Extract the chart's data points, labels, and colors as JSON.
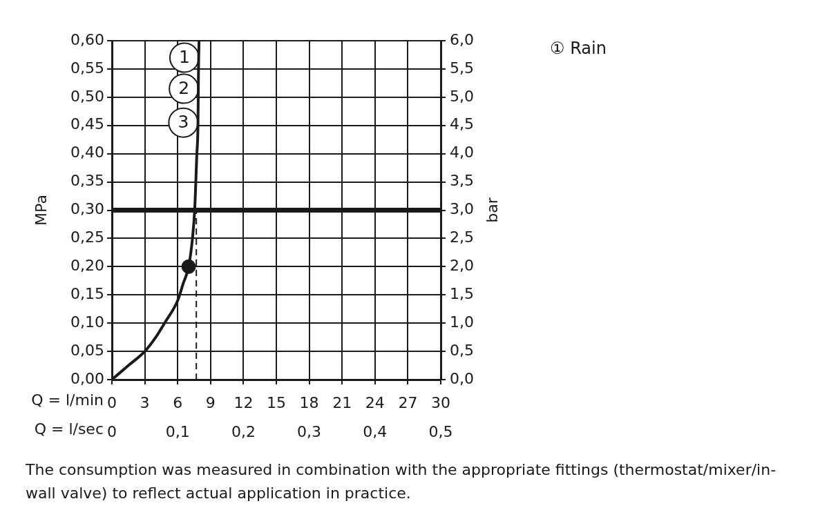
{
  "chart_data": {
    "type": "line",
    "xlabel": "Q = l/min",
    "x2label": "Q = l/sec",
    "ylabel": "MPa",
    "y2label": "bar",
    "xlim": [
      0,
      30
    ],
    "xticks": [
      0,
      3,
      6,
      9,
      12,
      15,
      18,
      21,
      24,
      27,
      30
    ],
    "x2lim": [
      0,
      0.5
    ],
    "x2ticks": [
      0,
      {
        "value": 0.1,
        "label": "0,1"
      },
      {
        "value": 0.2,
        "label": "0,2"
      },
      {
        "value": 0.3,
        "label": "0,3"
      },
      {
        "value": 0.4,
        "label": "0,4"
      },
      {
        "value": 0.5,
        "label": "0,5"
      }
    ],
    "ylim": [
      0,
      0.6
    ],
    "yticks": [
      {
        "value": 0,
        "label": "0,00"
      },
      {
        "value": 0.05,
        "label": "0,05"
      },
      {
        "value": 0.1,
        "label": "0,10"
      },
      {
        "value": 0.15,
        "label": "0,15"
      },
      {
        "value": 0.2,
        "label": "0,20"
      },
      {
        "value": 0.25,
        "label": "0,25"
      },
      {
        "value": 0.3,
        "label": "0,30"
      },
      {
        "value": 0.35,
        "label": "0,35"
      },
      {
        "value": 0.4,
        "label": "0,40"
      },
      {
        "value": 0.45,
        "label": "0,45"
      },
      {
        "value": 0.5,
        "label": "0,50"
      },
      {
        "value": 0.55,
        "label": "0,55"
      },
      {
        "value": 0.6,
        "label": "0,60"
      }
    ],
    "y2lim": [
      0,
      6
    ],
    "y2ticks": [
      {
        "value": 0,
        "label": "0,0"
      },
      {
        "value": 0.5,
        "label": "0,5"
      },
      {
        "value": 1,
        "label": "1,0"
      },
      {
        "value": 1.5,
        "label": "1,5"
      },
      {
        "value": 2,
        "label": "2,0"
      },
      {
        "value": 2.5,
        "label": "2,5"
      },
      {
        "value": 3,
        "label": "3,0"
      },
      {
        "value": 3.5,
        "label": "3,5"
      },
      {
        "value": 4,
        "label": "4,0"
      },
      {
        "value": 4.5,
        "label": "4,5"
      },
      {
        "value": 5,
        "label": "5,0"
      },
      {
        "value": 5.5,
        "label": "5,5"
      },
      {
        "value": 6,
        "label": "6,0"
      }
    ],
    "grid": true,
    "series": [
      {
        "color": "#1a1a1a",
        "x": [
          0,
          1.5,
          3,
          4,
          4.8,
          6,
          6.5,
          7.0,
          7.35,
          7.55,
          7.75,
          7.85,
          7.9,
          7.95
        ],
        "values": [
          0,
          0.025,
          0.05,
          0.075,
          0.1,
          0.14,
          0.17,
          0.2,
          0.25,
          0.3,
          0.4,
          0.45,
          0.55,
          0.6
        ]
      },
      {
        "color": "#1a1a1a",
        "x": [
          7.7,
          7.7
        ],
        "values": [
          0,
          0.3
        ],
        "line_style": "dashed"
      },
      {
        "type": "scatter",
        "color": "#1a1a1a",
        "x": [
          7.0
        ],
        "values": [
          0.2
        ],
        "marker": "circle"
      }
    ],
    "ref_lines": [
      {
        "axis": "y",
        "value": 0.3,
        "color": "#1a1a1a"
      }
    ],
    "annotations": [
      {
        "text": "1",
        "x": 8.0,
        "y": 0.57
      },
      {
        "text": "2",
        "x": 7.95,
        "y": 0.515
      },
      {
        "text": "3",
        "x": 7.9,
        "y": 0.455
      },
      "① Rain",
      "The consumption was measured in combination with the appropriate fittings (thermostat/mixer/in-wall valve) to reflect actual application in practice."
    ]
  }
}
